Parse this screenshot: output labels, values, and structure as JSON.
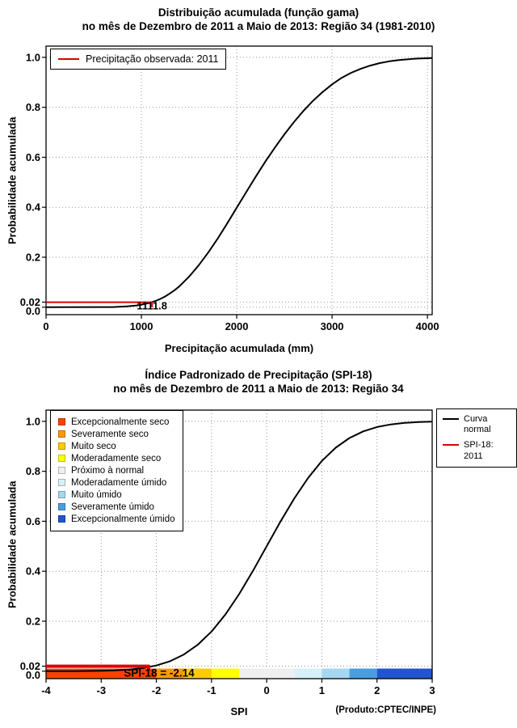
{
  "charts": {
    "top": {
      "title_line1": "Distribuição acumulada (função gama)",
      "title_line2": "no mês de Dezembro de 2011 a Maio de 2013: Região 34 (1981-2010)",
      "xlabel": "Precipitação acumulada (mm)",
      "ylabel": "Probabilidade acumulada",
      "legend_items": [
        {
          "label": "Precipitação observada: 2011",
          "color": "#dd0000"
        }
      ],
      "observed_value_mm": "1111.8",
      "observed_probability": "0.02"
    },
    "bottom": {
      "title_line1": "Índice Padronizado de Precipitação (SPI-18)",
      "title_line2": "no mês de Dezembro de 2011 a Maio de 2013: Região 34",
      "xlabel": "SPI",
      "ylabel": "Probabilidade acumulada",
      "footnote": "(Produto:CPTEC/INPE)",
      "spi_value": "-2.14",
      "category_legend": [
        {
          "label": "Excepcionalmente seco",
          "color": "#ff4000"
        },
        {
          "label": "Severamente seco",
          "color": "#ff9900"
        },
        {
          "label": "Muito seco",
          "color": "#ffcc00"
        },
        {
          "label": "Moderadamente seco",
          "color": "#ffff00"
        },
        {
          "label": "Próximo à normal",
          "color": "#efefef"
        },
        {
          "label": "Moderadamente úmido",
          "color": "#d8f0fa"
        },
        {
          "label": "Muito úmido",
          "color": "#a4d8f0"
        },
        {
          "label": "Severamente úmido",
          "color": "#4a9ede"
        },
        {
          "label": "Excepcionalmente úmido",
          "color": "#2255cc"
        }
      ],
      "curve_legend": [
        {
          "label": "Curva normal",
          "label_lines": [
            "Curva",
            "normal"
          ],
          "color": "#000000"
        },
        {
          "label": "SPI-18: 2011",
          "label_lines": [
            "SPI-18: 2011"
          ],
          "color": "#dd0000"
        }
      ]
    }
  },
  "chart_data": [
    {
      "type": "line",
      "title": "Distribuição acumulada (função gama) no mês de Dezembro de 2011 a Maio de 2013: Região 34 (1981-2010)",
      "xlabel": "Precipitação acumulada (mm)",
      "ylabel": "Probabilidade acumulada",
      "xlim": [
        0,
        4050
      ],
      "ylim": [
        0,
        1
      ],
      "grid": true,
      "legend_position": "top-left",
      "x_ticks": [
        {
          "v": 0,
          "label": "0"
        },
        {
          "v": 1000,
          "label": "1000"
        },
        {
          "v": 2000,
          "label": "2000"
        },
        {
          "v": 3000,
          "label": "3000"
        },
        {
          "v": 4000,
          "label": "4000"
        }
      ],
      "y_ticks": [
        {
          "v": 1.0,
          "label": "1.0"
        },
        {
          "v": 0.8,
          "label": "0.8"
        },
        {
          "v": 0.6,
          "label": "0.6"
        },
        {
          "v": 0.4,
          "label": "0.4"
        },
        {
          "v": 0.2,
          "label": "0.2"
        },
        {
          "v": 0.02,
          "label": "0.02"
        },
        {
          "v": 0.0,
          "label": "0.0",
          "dy": 5
        }
      ],
      "series": [
        {
          "name": "gamma-cdf",
          "color": "#000000",
          "width": 2,
          "x": [
            0,
            700,
            850,
            950,
            1000,
            1050,
            1100,
            1111.8,
            1150,
            1200,
            1250,
            1300,
            1350,
            1400,
            1500,
            1600,
            1700,
            1800,
            1900,
            2000,
            2100,
            2200,
            2300,
            2400,
            2500,
            2600,
            2700,
            2800,
            2900,
            3000,
            3100,
            3200,
            3300,
            3400,
            3500,
            3600,
            3700,
            3800,
            3900,
            4000,
            4050
          ],
          "y": [
            0,
            0.0005,
            0.003,
            0.007,
            0.01,
            0.014,
            0.019,
            0.02,
            0.025,
            0.033,
            0.043,
            0.055,
            0.068,
            0.084,
            0.122,
            0.167,
            0.218,
            0.274,
            0.335,
            0.398,
            0.461,
            0.523,
            0.583,
            0.639,
            0.692,
            0.741,
            0.786,
            0.826,
            0.861,
            0.892,
            0.918,
            0.938,
            0.954,
            0.967,
            0.977,
            0.984,
            0.989,
            0.9925,
            0.995,
            0.9965,
            0.997
          ]
        },
        {
          "name": "observed-precipitation-2011",
          "color": "#dd0000",
          "width": 2,
          "x": [
            0,
            1111.8,
            1111.8
          ],
          "y": [
            0.02,
            0.02,
            0.0
          ]
        }
      ],
      "annotations": [
        {
          "text": "1111.8",
          "x": 1111.8,
          "y": 0,
          "dy": 3,
          "size": 13
        }
      ]
    },
    {
      "type": "line",
      "title": "Índice Padronizado de Precipitação (SPI-18) no mês de Dezembro de 2011 a Maio de 2013: Região 34",
      "xlabel": "SPI",
      "ylabel": "Probabilidade acumulada",
      "xlim": [
        -4,
        3
      ],
      "ylim": [
        0,
        1
      ],
      "grid": true,
      "legend_position": "top-left and top-right",
      "x_ticks": [
        {
          "v": -4,
          "label": "-4"
        },
        {
          "v": -3,
          "label": "-3"
        },
        {
          "v": -2,
          "label": "-2"
        },
        {
          "v": -1,
          "label": "-1"
        },
        {
          "v": 0,
          "label": "0"
        },
        {
          "v": 1,
          "label": "1"
        },
        {
          "v": 2,
          "label": "2"
        },
        {
          "v": 3,
          "label": "3"
        }
      ],
      "y_ticks": [
        {
          "v": 1.0,
          "label": "1.0"
        },
        {
          "v": 0.8,
          "label": "0.8"
        },
        {
          "v": 0.6,
          "label": "0.6"
        },
        {
          "v": 0.4,
          "label": "0.4"
        },
        {
          "v": 0.2,
          "label": "0.2"
        },
        {
          "v": 0.02,
          "label": "0.02"
        },
        {
          "v": 0.0,
          "label": "0.0",
          "dy": 5
        }
      ],
      "band_segments": [
        {
          "from": -4,
          "to": -2,
          "color": "#ff4000",
          "label": "Excepcionalmente seco"
        },
        {
          "from": -2,
          "to": -1.5,
          "color": "#ff9900",
          "label": "Severamente seco"
        },
        {
          "from": -1.5,
          "to": -1,
          "color": "#ffcc00",
          "label": "Muito seco"
        },
        {
          "from": -1,
          "to": -0.5,
          "color": "#ffff00",
          "label": "Moderadamente seco"
        },
        {
          "from": -0.5,
          "to": 0.5,
          "color": "#efefef",
          "label": "Próximo à normal"
        },
        {
          "from": 0.5,
          "to": 1,
          "color": "#d8f0fa",
          "label": "Moderadamente úmido"
        },
        {
          "from": 1,
          "to": 1.5,
          "color": "#a4d8f0",
          "label": "Muito úmido"
        },
        {
          "from": 1.5,
          "to": 2,
          "color": "#4a9ede",
          "label": "Severamente úmido"
        },
        {
          "from": 2,
          "to": 3,
          "color": "#2255cc",
          "label": "Excepcionalmente úmido"
        }
      ],
      "series": [
        {
          "name": "normal-cdf",
          "color": "#000000",
          "width": 2,
          "x": [
            -4,
            -3.5,
            -3,
            -2.75,
            -2.5,
            -2.25,
            -2,
            -1.75,
            -1.5,
            -1.25,
            -1,
            -0.75,
            -0.5,
            -0.25,
            0,
            0.25,
            0.5,
            0.75,
            1,
            1.25,
            1.5,
            1.75,
            2,
            2.25,
            2.5,
            2.75,
            3
          ],
          "y": [
            0.0,
            0.0002,
            0.0013,
            0.003,
            0.0062,
            0.0122,
            0.0228,
            0.0401,
            0.0668,
            0.1056,
            0.1587,
            0.2266,
            0.3085,
            0.4013,
            0.5,
            0.5987,
            0.6915,
            0.7734,
            0.8413,
            0.8944,
            0.9332,
            0.9599,
            0.9772,
            0.9878,
            0.9938,
            0.997,
            0.9987
          ]
        },
        {
          "name": "spi18-2011",
          "color": "#dd0000",
          "width": 4,
          "x": [
            -4,
            -2.14,
            -2.14
          ],
          "y": [
            0.02,
            0.02,
            0.0
          ]
        }
      ],
      "annotations": [
        {
          "text": "SPI-18 = -2.14",
          "x": -1.95,
          "y": 0,
          "dy": 7,
          "size": 13.5
        }
      ]
    }
  ]
}
